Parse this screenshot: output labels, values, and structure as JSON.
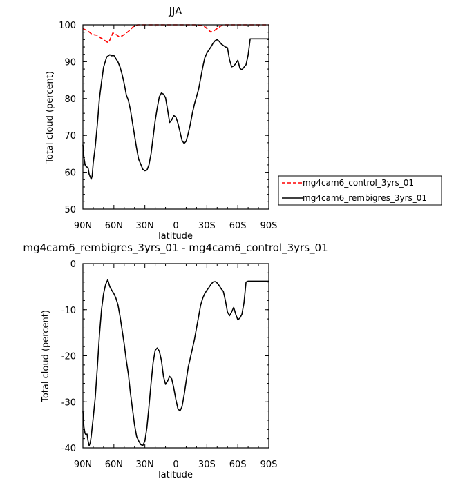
{
  "chart_data": [
    {
      "type": "line",
      "title": "JJA",
      "xlabel": "latitude",
      "ylabel": "Total cloud (percent)",
      "xlim": [
        90,
        -90
      ],
      "ylim": [
        50,
        100
      ],
      "x_ticks": [
        90,
        60,
        30,
        0,
        -30,
        -60,
        -90
      ],
      "x_tick_labels": [
        "90N",
        "60N",
        "30N",
        "0",
        "30S",
        "60S",
        "90S"
      ],
      "y_ticks": [
        50,
        60,
        70,
        80,
        90,
        100
      ],
      "y_tick_labels": [
        "50",
        "60",
        "70",
        "80",
        "90",
        "100"
      ],
      "legend_position": "right, outside plot",
      "series": [
        {
          "name": "mg4cam6_control_3yrs_01",
          "color": "#ff0000",
          "style": "dashed",
          "x": [
            90,
            88,
            85,
            82,
            79,
            76,
            73,
            70,
            67,
            65,
            63,
            61,
            58,
            55,
            52,
            49,
            46,
            43,
            40,
            37,
            34,
            31,
            28,
            25,
            20,
            15,
            10,
            5,
            0,
            -5,
            -10,
            -15,
            -20,
            -25,
            -28,
            -31,
            -34,
            -37,
            -40,
            -43,
            -46,
            -49,
            -52,
            -55,
            -60,
            -65,
            -70,
            -75,
            -80,
            -85,
            -90
          ],
          "y": [
            99.0,
            98.7,
            98.3,
            97.6,
            97.3,
            97.2,
            96.5,
            96.0,
            95.4,
            95.2,
            96.5,
            97.8,
            97.4,
            96.8,
            97.0,
            97.6,
            98.2,
            99.0,
            99.8,
            100,
            100,
            100,
            100,
            100,
            100,
            100,
            100,
            100,
            100,
            100,
            100,
            100,
            100,
            99.9,
            99.5,
            98.8,
            98.0,
            98.4,
            99.0,
            99.6,
            100,
            100,
            100,
            100,
            100,
            100,
            100,
            100,
            100,
            100,
            100
          ]
        },
        {
          "name": "mg4cam6_rembigres_3yrs_01",
          "color": "#000000",
          "style": "solid",
          "x": [
            90,
            89,
            88,
            87,
            85,
            84,
            82,
            81,
            80,
            78,
            76,
            74,
            72,
            70,
            67,
            64,
            62,
            60,
            58,
            56,
            54,
            52,
            50,
            48,
            46,
            44,
            42,
            40,
            38,
            36,
            34,
            32,
            30,
            28,
            26,
            24,
            22,
            20,
            18,
            16,
            14,
            12,
            10,
            8,
            6,
            4,
            2,
            0,
            -2,
            -4,
            -6,
            -8,
            -10,
            -12,
            -14,
            -16,
            -18,
            -20,
            -22,
            -24,
            -26,
            -28,
            -30,
            -32,
            -34,
            -36,
            -38,
            -40,
            -42,
            -44,
            -46,
            -48,
            -50,
            -52,
            -54,
            -56,
            -58,
            -60,
            -62,
            -64,
            -66,
            -68,
            -70,
            -72,
            -74,
            -76,
            -78,
            -80,
            -82,
            -84,
            -86,
            -88,
            -90
          ],
          "y": [
            67.5,
            64.0,
            62.2,
            61.6,
            61.2,
            59.5,
            58.1,
            59.0,
            62.5,
            67.0,
            73.0,
            80.0,
            84.5,
            88.5,
            91.3,
            91.9,
            91.6,
            91.7,
            90.8,
            89.9,
            88.5,
            86.5,
            84.0,
            81.0,
            79.5,
            77.0,
            73.5,
            70.0,
            66.5,
            63.5,
            62.2,
            60.8,
            60.4,
            60.6,
            62.0,
            65.0,
            69.5,
            74.0,
            77.5,
            80.5,
            81.5,
            81.2,
            80.2,
            77.0,
            73.5,
            74.2,
            75.4,
            75.0,
            73.3,
            71.0,
            68.6,
            67.8,
            68.4,
            70.5,
            73.0,
            76.0,
            78.5,
            80.5,
            82.5,
            85.5,
            88.5,
            91.0,
            92.3,
            93.2,
            94.0,
            95.0,
            95.7,
            96.0,
            95.5,
            94.8,
            94.4,
            94.0,
            93.8,
            90.5,
            88.6,
            88.8,
            89.5,
            90.4,
            88.2,
            87.8,
            88.5,
            89.2,
            91.8,
            96.2,
            96.2,
            96.2,
            96.2,
            96.2,
            96.2,
            96.2,
            96.2,
            96.2,
            96.2
          ]
        }
      ]
    },
    {
      "type": "line",
      "title": "mg4cam6_rembigres_3yrs_01 - mg4cam6_control_3yrs_01",
      "xlabel": "latitude",
      "ylabel": "Total cloud (percent)",
      "xlim": [
        90,
        -90
      ],
      "ylim": [
        -40,
        0
      ],
      "x_ticks": [
        90,
        60,
        30,
        0,
        -30,
        -60,
        -90
      ],
      "x_tick_labels": [
        "90N",
        "60N",
        "30N",
        "0",
        "30S",
        "60S",
        "90S"
      ],
      "y_ticks": [
        -40,
        -30,
        -20,
        -10,
        0
      ],
      "y_tick_labels": [
        "-40",
        "-30",
        "-20",
        "-10",
        "0"
      ],
      "series": [
        {
          "color": "#000000",
          "style": "solid",
          "x": [
            90,
            89,
            88,
            87,
            86,
            85,
            84,
            83,
            82,
            80,
            78,
            76,
            74,
            72,
            70,
            68,
            66,
            64,
            62,
            60,
            58,
            56,
            54,
            52,
            50,
            48,
            46,
            44,
            42,
            40,
            38,
            36,
            34,
            32,
            30,
            28,
            26,
            24,
            22,
            20,
            18,
            16,
            14,
            12,
            10,
            8,
            6,
            4,
            2,
            0,
            -2,
            -4,
            -6,
            -8,
            -10,
            -12,
            -14,
            -16,
            -18,
            -20,
            -22,
            -24,
            -26,
            -28,
            -30,
            -32,
            -34,
            -36,
            -38,
            -40,
            -42,
            -44,
            -46,
            -48,
            -50,
            -52,
            -54,
            -56,
            -58,
            -60,
            -62,
            -64,
            -66,
            -68,
            -70,
            -72,
            -74,
            -76,
            -78,
            -80,
            -82,
            -84,
            -86,
            -88,
            -90
          ],
          "y": [
            -32.0,
            -35.5,
            -36.8,
            -37.2,
            -37.0,
            -38.5,
            -39.5,
            -39.0,
            -37.5,
            -33.5,
            -29.0,
            -22.5,
            -15.5,
            -10.0,
            -6.5,
            -4.5,
            -3.5,
            -5.0,
            -5.8,
            -6.5,
            -7.5,
            -9.0,
            -11.5,
            -14.5,
            -17.5,
            -21.0,
            -24.0,
            -28.0,
            -31.5,
            -35.0,
            -37.5,
            -38.5,
            -39.3,
            -39.5,
            -38.5,
            -35.5,
            -31.0,
            -26.0,
            -21.5,
            -18.8,
            -18.3,
            -19.0,
            -21.0,
            -24.5,
            -26.2,
            -25.5,
            -24.5,
            -25.0,
            -27.0,
            -29.5,
            -31.5,
            -32.0,
            -31.0,
            -28.5,
            -25.5,
            -22.5,
            -20.5,
            -18.5,
            -16.5,
            -14.0,
            -11.5,
            -9.0,
            -7.5,
            -6.5,
            -5.8,
            -5.2,
            -4.5,
            -4.0,
            -3.9,
            -4.2,
            -4.8,
            -5.5,
            -6.0,
            -8.0,
            -10.5,
            -11.3,
            -10.5,
            -9.5,
            -11.0,
            -12.2,
            -11.8,
            -11.0,
            -8.5,
            -4.0,
            -3.8,
            -3.8,
            -3.8,
            -3.8,
            -3.8,
            -3.8,
            -3.8,
            -3.8,
            -3.8,
            -3.8,
            -3.8
          ]
        }
      ]
    }
  ]
}
